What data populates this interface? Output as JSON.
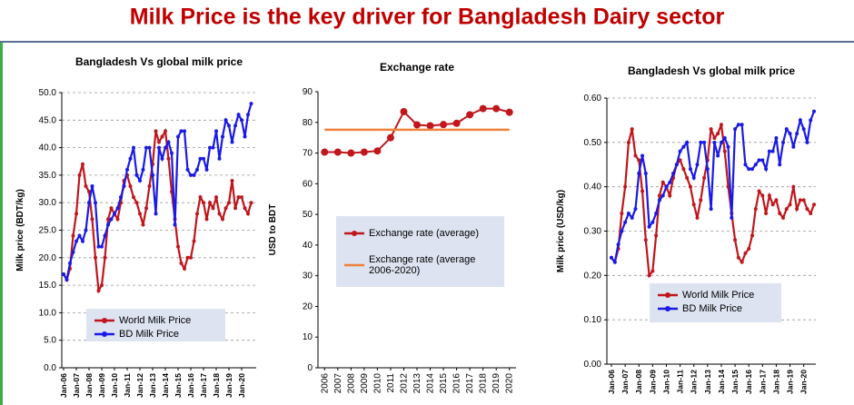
{
  "title": "Milk Price is the key driver for Bangladesh Dairy sector",
  "chart_data": [
    {
      "type": "line",
      "title": "Bangladesh Vs global milk price",
      "y_label": "Milk price (BDT/kg)",
      "categories": [
        "Jan-06",
        null,
        null,
        null,
        "Jan-07",
        null,
        null,
        null,
        "Jan-08",
        null,
        null,
        null,
        "Jan-09",
        null,
        null,
        null,
        "Jan-10",
        null,
        null,
        null,
        "Jan-11",
        null,
        null,
        null,
        "Jan-12",
        null,
        null,
        null,
        "Jan-13",
        null,
        null,
        null,
        "Jan-14",
        null,
        null,
        null,
        "Jan-15",
        null,
        null,
        null,
        "Jan-16",
        null,
        null,
        null,
        "Jan-17",
        null,
        null,
        null,
        "Jan-18",
        null,
        null,
        null,
        "Jan-19",
        null,
        null,
        null,
        "Jan-20",
        null,
        null,
        null
      ],
      "series": [
        {
          "name": "World Milk Price",
          "color": "#c0161c",
          "values": [
            17,
            16,
            18,
            24,
            28,
            35,
            37,
            33,
            32,
            27,
            20,
            14,
            15,
            20,
            27,
            29,
            28,
            27,
            30,
            34,
            35,
            33,
            31,
            30,
            28,
            26,
            29,
            33,
            37,
            43,
            41,
            42,
            43,
            38,
            32,
            27,
            22,
            19,
            18,
            20,
            20,
            23,
            28,
            31,
            30,
            27,
            30,
            29,
            31,
            28,
            27,
            29,
            30,
            34,
            29,
            31,
            31,
            29,
            28,
            30
          ]
        },
        {
          "name": "BD Milk Price",
          "color": "#1a1ae6",
          "values": [
            17,
            16,
            19,
            21,
            23,
            24,
            23,
            25,
            30,
            33,
            30,
            22,
            22,
            24,
            26,
            27,
            28,
            29,
            31,
            33,
            36,
            38,
            40,
            35,
            34,
            36,
            40,
            40,
            35,
            28,
            40,
            38,
            40,
            41,
            39,
            26,
            42,
            43,
            43,
            36,
            35,
            35,
            36,
            38,
            38,
            36,
            40,
            40,
            43,
            38,
            42,
            45,
            44,
            41,
            44,
            46,
            45,
            42,
            46,
            48
          ]
        }
      ],
      "ylim": [
        0,
        50
      ],
      "yticks": [
        {
          "value": 0,
          "label": "0.0"
        },
        {
          "value": 5,
          "label": "5.0"
        },
        {
          "value": 10,
          "label": "10.0"
        },
        {
          "value": 15,
          "label": "15.0"
        },
        {
          "value": 20,
          "label": "20.0"
        },
        {
          "value": 25,
          "label": "25.0"
        },
        {
          "value": 30,
          "label": "30.0"
        },
        {
          "value": 35,
          "label": "35.0"
        },
        {
          "value": 40,
          "label": "40.0"
        },
        {
          "value": 45,
          "label": "45.0"
        },
        {
          "value": 50,
          "label": "50.0"
        }
      ],
      "grid": true,
      "legend": "bottom"
    },
    {
      "type": "line",
      "title": "Exchange rate",
      "y_label": "USD to BDT",
      "categories": [
        "2006",
        "2007",
        "2008",
        "2009",
        "2010",
        "2011",
        "2012",
        "2013",
        "2014",
        "2015",
        "2016",
        "2017",
        "2018",
        "2019",
        "2020"
      ],
      "series": [
        {
          "name": "Exchange rate (average)",
          "color": "#c0161c",
          "values": [
            70.3,
            70.3,
            70,
            70.3,
            70.7,
            75,
            83.5,
            79.2,
            78.9,
            79.3,
            79.7,
            82.5,
            84.5,
            84.5,
            83.3
          ]
        },
        {
          "name": "Exchange rate (average 2006-2020)",
          "color": "#f0803c",
          "value": 77.6
        }
      ],
      "ylim": [
        0,
        90
      ],
      "yticks": [
        0,
        10,
        20,
        30,
        40,
        50,
        60,
        70,
        80,
        90
      ],
      "grid": false,
      "legend": "center"
    },
    {
      "type": "line",
      "title": "Bangladesh Vs global milk price",
      "y_label": "Milk price (USD/kg)",
      "categories": [
        "Jan-06",
        null,
        null,
        null,
        "Jan-07",
        null,
        null,
        null,
        "Jan-08",
        null,
        null,
        null,
        "Jan-09",
        null,
        null,
        null,
        "Jan-10",
        null,
        null,
        null,
        "Jan-11",
        null,
        null,
        null,
        "Jan-12",
        null,
        null,
        null,
        "Jan-13",
        null,
        null,
        null,
        "Jan-14",
        null,
        null,
        null,
        "Jan-15",
        null,
        null,
        null,
        "Jan-16",
        null,
        null,
        null,
        "Jan-17",
        null,
        null,
        null,
        "Jan-18",
        null,
        null,
        null,
        "Jan-19",
        null,
        null,
        null,
        "Jan-20",
        null,
        null,
        null
      ],
      "series": [
        {
          "name": "World Milk Price",
          "color": "#c0161c",
          "values": [
            0.24,
            0.23,
            0.26,
            0.34,
            0.4,
            0.5,
            0.53,
            0.47,
            0.46,
            0.39,
            0.28,
            0.2,
            0.21,
            0.29,
            0.38,
            0.41,
            0.4,
            0.38,
            0.42,
            0.45,
            0.46,
            0.44,
            0.42,
            0.4,
            0.36,
            0.33,
            0.37,
            0.42,
            0.46,
            0.53,
            0.51,
            0.52,
            0.54,
            0.48,
            0.4,
            0.34,
            0.28,
            0.24,
            0.23,
            0.25,
            0.26,
            0.29,
            0.35,
            0.39,
            0.38,
            0.34,
            0.38,
            0.36,
            0.37,
            0.34,
            0.33,
            0.35,
            0.36,
            0.4,
            0.35,
            0.37,
            0.37,
            0.35,
            0.34,
            0.36
          ]
        },
        {
          "name": "BD Milk Price",
          "color": "#1a1ae6",
          "values": [
            0.24,
            0.23,
            0.27,
            0.3,
            0.32,
            0.34,
            0.33,
            0.35,
            0.43,
            0.47,
            0.43,
            0.31,
            0.32,
            0.34,
            0.37,
            0.38,
            0.4,
            0.41,
            0.43,
            0.45,
            0.48,
            0.49,
            0.5,
            0.44,
            0.42,
            0.45,
            0.5,
            0.5,
            0.44,
            0.35,
            0.5,
            0.47,
            0.5,
            0.51,
            0.49,
            0.33,
            0.53,
            0.54,
            0.54,
            0.45,
            0.44,
            0.44,
            0.45,
            0.46,
            0.46,
            0.44,
            0.48,
            0.48,
            0.51,
            0.45,
            0.5,
            0.53,
            0.52,
            0.49,
            0.52,
            0.55,
            0.53,
            0.5,
            0.55,
            0.57
          ]
        }
      ],
      "ylim": [
        0,
        0.6
      ],
      "yticks": [
        {
          "value": 0,
          "label": "0.00"
        },
        {
          "value": 0.1,
          "label": "0.10"
        },
        {
          "value": 0.2,
          "label": "0.20"
        },
        {
          "value": 0.3,
          "label": "0.30"
        },
        {
          "value": 0.4,
          "label": "0.40"
        },
        {
          "value": 0.5,
          "label": "0.50"
        },
        {
          "value": 0.6,
          "label": "0.60"
        }
      ],
      "grid": true,
      "legend": "bottom"
    }
  ]
}
